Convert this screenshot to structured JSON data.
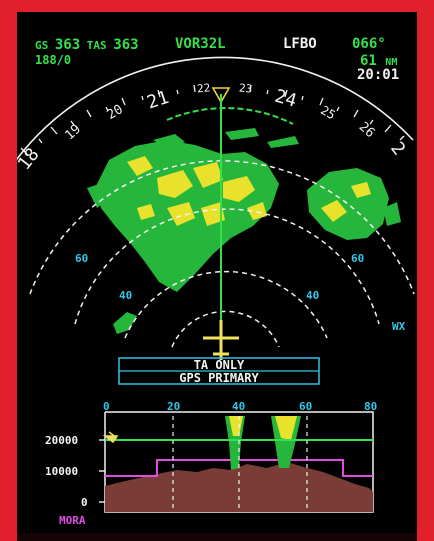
{
  "header": {
    "gs_label": "GS",
    "gs_value": "363",
    "tas_label": "TAS",
    "tas_value": "363",
    "wind": "188/0",
    "waypoint": "VOR32L",
    "destination": "LFBO",
    "bearing": "066°",
    "distance_value": "61",
    "distance_unit": "NM",
    "time": "20:01"
  },
  "compass": {
    "heading_labels": [
      "18",
      "19",
      "20",
      "21",
      "22",
      "23",
      "24",
      "25",
      "26",
      "2"
    ],
    "ring_labels_left": [
      "60",
      "40"
    ],
    "ring_labels_right": [
      "60",
      "40"
    ]
  },
  "mode_label": "WX",
  "messages": {
    "line1": "TA ONLY",
    "line2": "GPS PRIMARY"
  },
  "vertical_display": {
    "distance_ticks": [
      "0",
      "20",
      "40",
      "60",
      "80"
    ],
    "altitude_ticks": [
      "20000",
      "10000",
      "0"
    ],
    "mora_label": "MORA"
  },
  "colors": {
    "background": "#000000",
    "bezel": "#e0202a",
    "weather_green": "#27b63c",
    "weather_yellow": "#e9e22c",
    "magenta": "#e04ee0",
    "cyan": "#31c6e8",
    "terrain": "#7a3c36"
  }
}
